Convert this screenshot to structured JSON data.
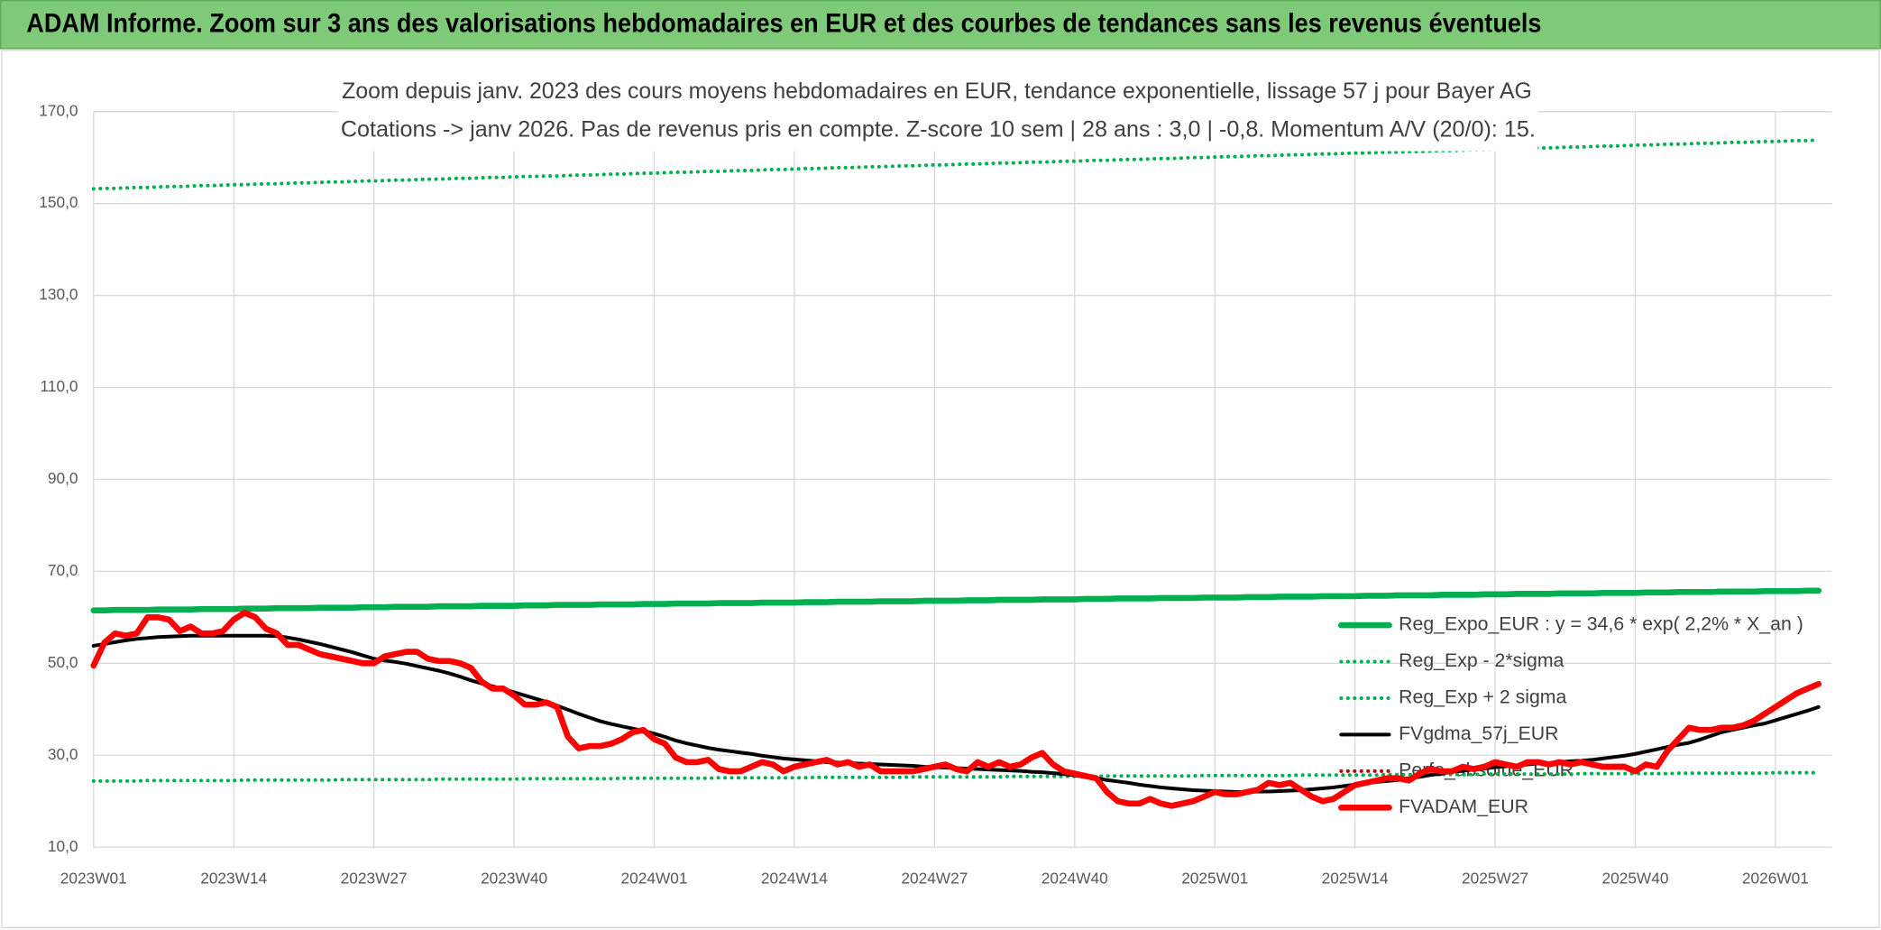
{
  "chart_data": {
    "type": "line",
    "title": "ADAM Informe. Zoom sur 3 ans des valorisations hebdomadaires en EUR et des courbes de tendances sans les revenus éventuels",
    "subtitle": [
      "Zoom depuis janv. 2023 des cours moyens hebdomadaires en EUR, tendance exponentielle, lissage 57 j pour Bayer AG",
      "Cotations -> janv 2026. Pas de revenus pris en compte. Z-score 10 sem | 28 ans : 3,0 | -0,8. Momentum A/V (20/0): 15."
    ],
    "categories": [
      "2023W01",
      null,
      null,
      null,
      null,
      null,
      null,
      null,
      null,
      null,
      null,
      null,
      null,
      "2023W14",
      null,
      null,
      null,
      null,
      null,
      null,
      null,
      null,
      null,
      null,
      null,
      null,
      "2023W27",
      null,
      null,
      null,
      null,
      null,
      null,
      null,
      null,
      null,
      null,
      null,
      null,
      "2023W40",
      null,
      null,
      null,
      null,
      null,
      null,
      null,
      null,
      null,
      null,
      null,
      null,
      "2024W01",
      null,
      null,
      null,
      null,
      null,
      null,
      null,
      null,
      null,
      null,
      null,
      null,
      "2024W14",
      null,
      null,
      null,
      null,
      null,
      null,
      null,
      null,
      null,
      null,
      null,
      null,
      "2024W27",
      null,
      null,
      null,
      null,
      null,
      null,
      null,
      null,
      null,
      null,
      null,
      null,
      "2024W40",
      null,
      null,
      null,
      null,
      null,
      null,
      null,
      null,
      null,
      null,
      null,
      null,
      "2025W01",
      null,
      null,
      null,
      null,
      null,
      null,
      null,
      null,
      null,
      null,
      null,
      null,
      "2025W14",
      null,
      null,
      null,
      null,
      null,
      null,
      null,
      null,
      null,
      null,
      null,
      null,
      "2025W27",
      null,
      null,
      null,
      null,
      null,
      null,
      null,
      null,
      null,
      null,
      null,
      null,
      "2025W40",
      null,
      null,
      null,
      null,
      null,
      null,
      null,
      null,
      null,
      null,
      null,
      null,
      "2026W01",
      null,
      null,
      null,
      null
    ],
    "series": [
      {
        "name": "Reg_Expo_EUR : y = 34,6 * exp( 2,2% *  X_an )",
        "color": "#00b050",
        "style": "solid",
        "values": [
          61.5,
          61.5,
          61.6,
          61.6,
          61.6,
          61.6,
          61.7,
          61.7,
          61.7,
          61.7,
          61.8,
          61.8,
          61.8,
          61.8,
          61.9,
          61.9,
          61.9,
          62.0,
          62.0,
          62.0,
          62.0,
          62.1,
          62.1,
          62.1,
          62.1,
          62.2,
          62.2,
          62.2,
          62.3,
          62.3,
          62.3,
          62.3,
          62.4,
          62.4,
          62.4,
          62.4,
          62.5,
          62.5,
          62.5,
          62.5,
          62.6,
          62.6,
          62.6,
          62.7,
          62.7,
          62.7,
          62.7,
          62.8,
          62.8,
          62.8,
          62.8,
          62.9,
          62.9,
          62.9,
          63.0,
          63.0,
          63.0,
          63.0,
          63.1,
          63.1,
          63.1,
          63.1,
          63.2,
          63.2,
          63.2,
          63.2,
          63.3,
          63.3,
          63.3,
          63.4,
          63.4,
          63.4,
          63.4,
          63.5,
          63.5,
          63.5,
          63.5,
          63.6,
          63.6,
          63.6,
          63.6,
          63.7,
          63.7,
          63.7,
          63.8,
          63.8,
          63.8,
          63.8,
          63.9,
          63.9,
          63.9,
          63.9,
          64.0,
          64.0,
          64.0,
          64.1,
          64.1,
          64.1,
          64.1,
          64.2,
          64.2,
          64.2,
          64.2,
          64.3,
          64.3,
          64.3,
          64.3,
          64.4,
          64.4,
          64.4,
          64.5,
          64.5,
          64.5,
          64.5,
          64.6,
          64.6,
          64.6,
          64.6,
          64.7,
          64.7,
          64.7,
          64.8,
          64.8,
          64.8,
          64.8,
          64.9,
          64.9,
          64.9,
          64.9,
          65.0,
          65.0,
          65.0,
          65.1,
          65.1,
          65.1,
          65.1,
          65.2,
          65.2,
          65.2,
          65.2,
          65.3,
          65.3,
          65.3,
          65.3,
          65.4,
          65.4,
          65.4,
          65.5,
          65.5,
          65.5,
          65.5,
          65.6,
          65.6,
          65.6,
          65.6,
          65.7,
          65.7,
          65.7,
          65.7,
          65.8,
          65.8
        ]
      },
      {
        "name": "Reg_Exp - 2*sigma",
        "color": "#00b050",
        "style": "dotted",
        "values": [
          24.4,
          24.4,
          24.4,
          24.4,
          24.4,
          24.5,
          24.5,
          24.5,
          24.5,
          24.5,
          24.5,
          24.5,
          24.5,
          24.5,
          24.6,
          24.6,
          24.6,
          24.6,
          24.6,
          24.6,
          24.6,
          24.6,
          24.6,
          24.7,
          24.7,
          24.7,
          24.7,
          24.7,
          24.7,
          24.7,
          24.7,
          24.7,
          24.8,
          24.8,
          24.8,
          24.8,
          24.8,
          24.8,
          24.8,
          24.8,
          24.9,
          24.9,
          24.9,
          24.9,
          24.9,
          24.9,
          24.9,
          24.9,
          24.9,
          25.0,
          25.0,
          25.0,
          25.0,
          25.0,
          25.0,
          25.0,
          25.0,
          25.0,
          25.1,
          25.1,
          25.1,
          25.1,
          25.1,
          25.1,
          25.1,
          25.1,
          25.1,
          25.2,
          25.2,
          25.2,
          25.2,
          25.2,
          25.2,
          25.2,
          25.2,
          25.2,
          25.3,
          25.3,
          25.3,
          25.3,
          25.3,
          25.3,
          25.3,
          25.3,
          25.3,
          25.4,
          25.4,
          25.4,
          25.4,
          25.4,
          25.4,
          25.4,
          25.4,
          25.4,
          25.5,
          25.5,
          25.5,
          25.5,
          25.5,
          25.5,
          25.5,
          25.5,
          25.5,
          25.6,
          25.6,
          25.6,
          25.6,
          25.6,
          25.6,
          25.6,
          25.6,
          25.6,
          25.7,
          25.7,
          25.7,
          25.7,
          25.7,
          25.7,
          25.7,
          25.7,
          25.8,
          25.8,
          25.8,
          25.8,
          25.8,
          25.8,
          25.8,
          25.8,
          25.8,
          25.9,
          25.9,
          25.9,
          25.9,
          25.9,
          25.9,
          25.9,
          25.9,
          25.9,
          26.0,
          26.0,
          26.0,
          26.0,
          26.0,
          26.0,
          26.0,
          26.0,
          26.0,
          26.1,
          26.1,
          26.1,
          26.1,
          26.1,
          26.1,
          26.1,
          26.1,
          26.1,
          26.2,
          26.2,
          26.2,
          26.2,
          26.2
        ]
      },
      {
        "name": "Reg_Exp + 2 sigma",
        "color": "#00b050",
        "style": "dotted",
        "values": [
          153.2,
          153.3,
          153.3,
          153.4,
          153.5,
          153.5,
          153.6,
          153.7,
          153.7,
          153.8,
          153.9,
          153.9,
          154.0,
          154.1,
          154.1,
          154.2,
          154.3,
          154.3,
          154.4,
          154.5,
          154.5,
          154.6,
          154.7,
          154.7,
          154.8,
          154.9,
          154.9,
          155.0,
          155.1,
          155.1,
          155.2,
          155.3,
          155.3,
          155.4,
          155.5,
          155.5,
          155.6,
          155.7,
          155.7,
          155.8,
          155.9,
          155.9,
          156.0,
          156.0,
          156.1,
          156.2,
          156.2,
          156.3,
          156.4,
          156.4,
          156.5,
          156.6,
          156.6,
          156.7,
          156.8,
          156.8,
          156.9,
          157.0,
          157.0,
          157.1,
          157.2,
          157.2,
          157.3,
          157.4,
          157.4,
          157.5,
          157.6,
          157.6,
          157.7,
          157.8,
          157.8,
          157.9,
          158.0,
          158.0,
          158.1,
          158.2,
          158.2,
          158.3,
          158.4,
          158.4,
          158.5,
          158.6,
          158.6,
          158.7,
          158.8,
          158.8,
          158.9,
          159.0,
          159.0,
          159.1,
          159.2,
          159.2,
          159.3,
          159.4,
          159.4,
          159.5,
          159.6,
          159.6,
          159.7,
          159.8,
          159.8,
          159.9,
          160.0,
          160.0,
          160.1,
          160.2,
          160.2,
          160.3,
          160.4,
          160.4,
          160.5,
          160.6,
          160.6,
          160.7,
          160.8,
          160.8,
          160.9,
          161.0,
          161.0,
          161.1,
          161.2,
          161.2,
          161.3,
          161.3,
          161.4,
          161.5,
          161.5,
          161.6,
          161.7,
          161.7,
          161.8,
          161.9,
          161.9,
          162.0,
          162.1,
          162.1,
          162.2,
          162.3,
          162.3,
          162.4,
          162.5,
          162.5,
          162.6,
          162.7,
          162.7,
          162.8,
          162.9,
          162.9,
          163.0,
          163.1,
          163.1,
          163.2,
          163.3,
          163.3,
          163.4,
          163.5,
          163.5,
          163.6,
          163.7,
          163.7,
          163.8
        ]
      },
      {
        "name": "FVgdma_57j_EUR",
        "color": "#000000",
        "style": "solid",
        "values": [
          53.8,
          54.2,
          54.6,
          55.0,
          55.3,
          55.5,
          55.7,
          55.8,
          55.9,
          56.0,
          56.0,
          56.0,
          56.0,
          56.0,
          56.0,
          56.0,
          56.0,
          55.9,
          55.6,
          55.2,
          54.7,
          54.2,
          53.6,
          53.0,
          52.4,
          51.7,
          51.0,
          50.6,
          50.3,
          49.9,
          49.4,
          48.9,
          48.4,
          47.8,
          47.1,
          46.3,
          45.6,
          45.0,
          44.4,
          43.7,
          43.0,
          42.3,
          41.6,
          40.8,
          39.9,
          39.0,
          38.2,
          37.4,
          36.8,
          36.3,
          35.8,
          35.3,
          34.7,
          34.0,
          33.2,
          32.6,
          32.1,
          31.6,
          31.2,
          30.9,
          30.6,
          30.3,
          29.9,
          29.6,
          29.3,
          29.1,
          28.9,
          28.7,
          28.5,
          28.4,
          28.3,
          28.2,
          28.1,
          28.0,
          27.9,
          27.8,
          27.7,
          27.5,
          27.4,
          27.3,
          27.2,
          27.1,
          27.0,
          26.9,
          26.8,
          26.7,
          26.6,
          26.4,
          26.3,
          26.1,
          25.9,
          25.6,
          25.3,
          25.0,
          24.6,
          24.3,
          24.0,
          23.6,
          23.3,
          23.0,
          22.8,
          22.6,
          22.4,
          22.3,
          22.2,
          22.1,
          22.0,
          22.0,
          22.1,
          22.1,
          22.2,
          22.3,
          22.4,
          22.6,
          22.8,
          23.0,
          23.3,
          23.6,
          23.9,
          24.2,
          24.4,
          24.6,
          25.0,
          25.3,
          25.7,
          26.0,
          26.4,
          26.6,
          26.9,
          27.1,
          27.4,
          27.6,
          27.8,
          28.0,
          28.2,
          28.3,
          28.5,
          28.7,
          28.8,
          29.0,
          29.3,
          29.6,
          29.9,
          30.3,
          30.8,
          31.3,
          31.8,
          32.3,
          32.7,
          33.4,
          34.2,
          35.0,
          35.5,
          36.0,
          36.5,
          36.9,
          37.6,
          38.3,
          39.0,
          39.7,
          40.5
        ]
      },
      {
        "name": "Perfo_absolue_EUR",
        "color": "#c00000",
        "style": "dotted"
      },
      {
        "name": "FVADAM_EUR",
        "color": "#ff0000",
        "style": "solid",
        "values": [
          49.5,
          54.5,
          56.5,
          56,
          56.5,
          60,
          60,
          59.5,
          57,
          58,
          56.5,
          56.5,
          57,
          59.5,
          61,
          60,
          57.5,
          56.5,
          54,
          54,
          53,
          52,
          51.5,
          51,
          50.5,
          50,
          50,
          51.5,
          52,
          52.5,
          52.5,
          51,
          50.5,
          50.5,
          50,
          49,
          46,
          44.5,
          44.5,
          43,
          41,
          41,
          41.5,
          40.5,
          34,
          31.5,
          32,
          32,
          32.5,
          33.5,
          35,
          35.5,
          33.5,
          32.5,
          29.5,
          28.5,
          28.5,
          29,
          27,
          26.5,
          26.5,
          27.5,
          28.5,
          28,
          26.5,
          27.5,
          28,
          28.5,
          29,
          28,
          28.5,
          27.5,
          28,
          26.5,
          26.5,
          26.5,
          26.5,
          27,
          27.5,
          28,
          27,
          26.5,
          28.5,
          27.5,
          28.5,
          27.5,
          28,
          29.5,
          30.5,
          28,
          26.5,
          26,
          25.5,
          25,
          22,
          20,
          19.5,
          19.5,
          20.5,
          19.5,
          19,
          19.5,
          20,
          21,
          22,
          21.5,
          21.5,
          22,
          22.5,
          24,
          23.5,
          24,
          22.5,
          21,
          20,
          20.5,
          22,
          23.5,
          24,
          24.5,
          25,
          25,
          24.5,
          26,
          27,
          26.5,
          26.5,
          27.5,
          27,
          27.5,
          28.5,
          28,
          27.5,
          28.5,
          28.5,
          28,
          28.5,
          28,
          28.5,
          28,
          27.5,
          27.5,
          27.5,
          26.5,
          28,
          27.5,
          31,
          33.5,
          36,
          35.5,
          35.5,
          36,
          36,
          36.5,
          37.5,
          39,
          40.5,
          42,
          43.5,
          44.5,
          45.5
        ]
      }
    ],
    "ylim": [
      10,
      170
    ],
    "yticks": [
      {
        "value": 10,
        "label": "10,0"
      },
      {
        "value": 30,
        "label": "30,0"
      },
      {
        "value": 50,
        "label": "50,0"
      },
      {
        "value": 70,
        "label": "70,0"
      },
      {
        "value": 90,
        "label": "90,0"
      },
      {
        "value": 110,
        "label": "110,0"
      },
      {
        "value": 130,
        "label": "130,0"
      },
      {
        "value": 150,
        "label": "150,0"
      },
      {
        "value": 170,
        "label": "170,0"
      }
    ],
    "grid": true,
    "legend": "lower right"
  }
}
